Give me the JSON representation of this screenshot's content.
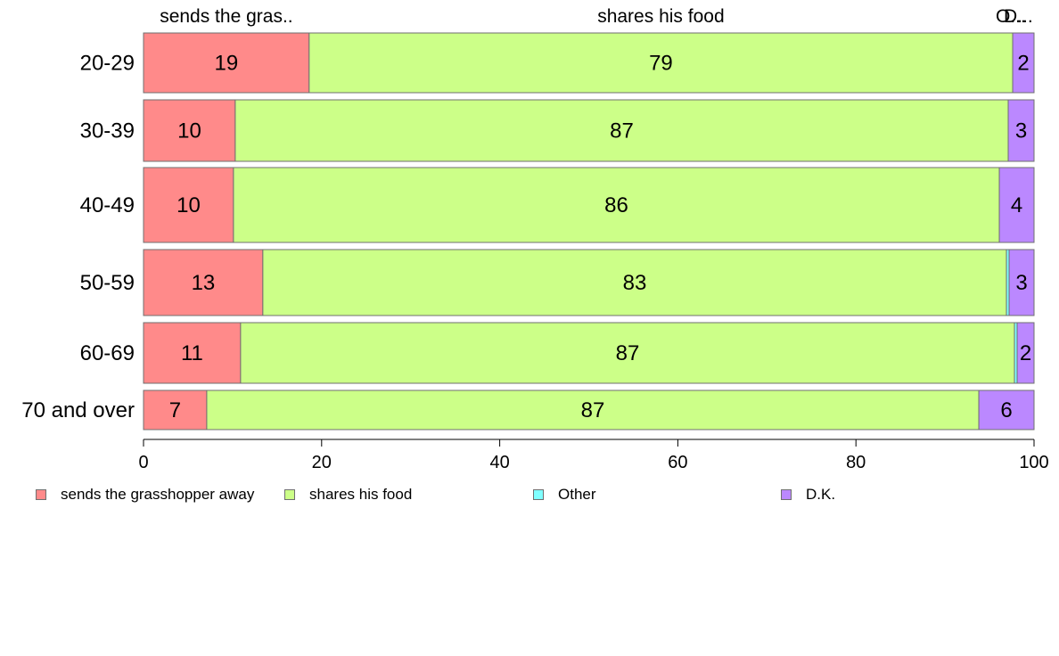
{
  "chart_data": {
    "type": "bar",
    "orientation": "horizontal",
    "stacked": true,
    "title": "",
    "xlabel": "",
    "ylabel": "",
    "xlim": [
      0,
      100
    ],
    "x_ticks": [
      0,
      20,
      40,
      60,
      80,
      100
    ],
    "grid": false,
    "legend_position": "bottom",
    "categories": [
      "20-29",
      "30-39",
      "40-49",
      "50-59",
      "60-69",
      "70 and over"
    ],
    "series": [
      {
        "name": "sends the grasshopper away",
        "color": "#ff8a8a",
        "values": [
          18.6,
          10.3,
          10.1,
          13.4,
          10.9,
          7.1
        ],
        "labels": [
          "19",
          "10",
          "10",
          "13",
          "11",
          "7"
        ]
      },
      {
        "name": "shares his food",
        "color": "#ccff88",
        "values": [
          79.0,
          86.8,
          86.0,
          83.5,
          86.9,
          86.7
        ],
        "labels": [
          "79",
          "87",
          "86",
          "83",
          "87",
          "87"
        ]
      },
      {
        "name": "Other",
        "color": "#7fffff",
        "values": [
          0.0,
          0.0,
          0.0,
          0.3,
          0.3,
          0.0
        ],
        "labels": [
          "",
          "",
          "",
          "",
          "",
          ""
        ]
      },
      {
        "name": "D.K.",
        "color": "#bb88ff",
        "values": [
          2.4,
          2.9,
          3.9,
          2.8,
          1.9,
          6.2
        ],
        "labels": [
          "2",
          "3",
          "4",
          "3",
          "2",
          "6"
        ]
      }
    ],
    "top_labels": [
      {
        "text": "sends the gras..",
        "align": "sends the grasshopper away"
      },
      {
        "text": "shares his food",
        "align": "shares his food"
      },
      {
        "text": "O...",
        "align": "Other"
      },
      {
        "text": "D...",
        "align": "D.K."
      }
    ]
  }
}
